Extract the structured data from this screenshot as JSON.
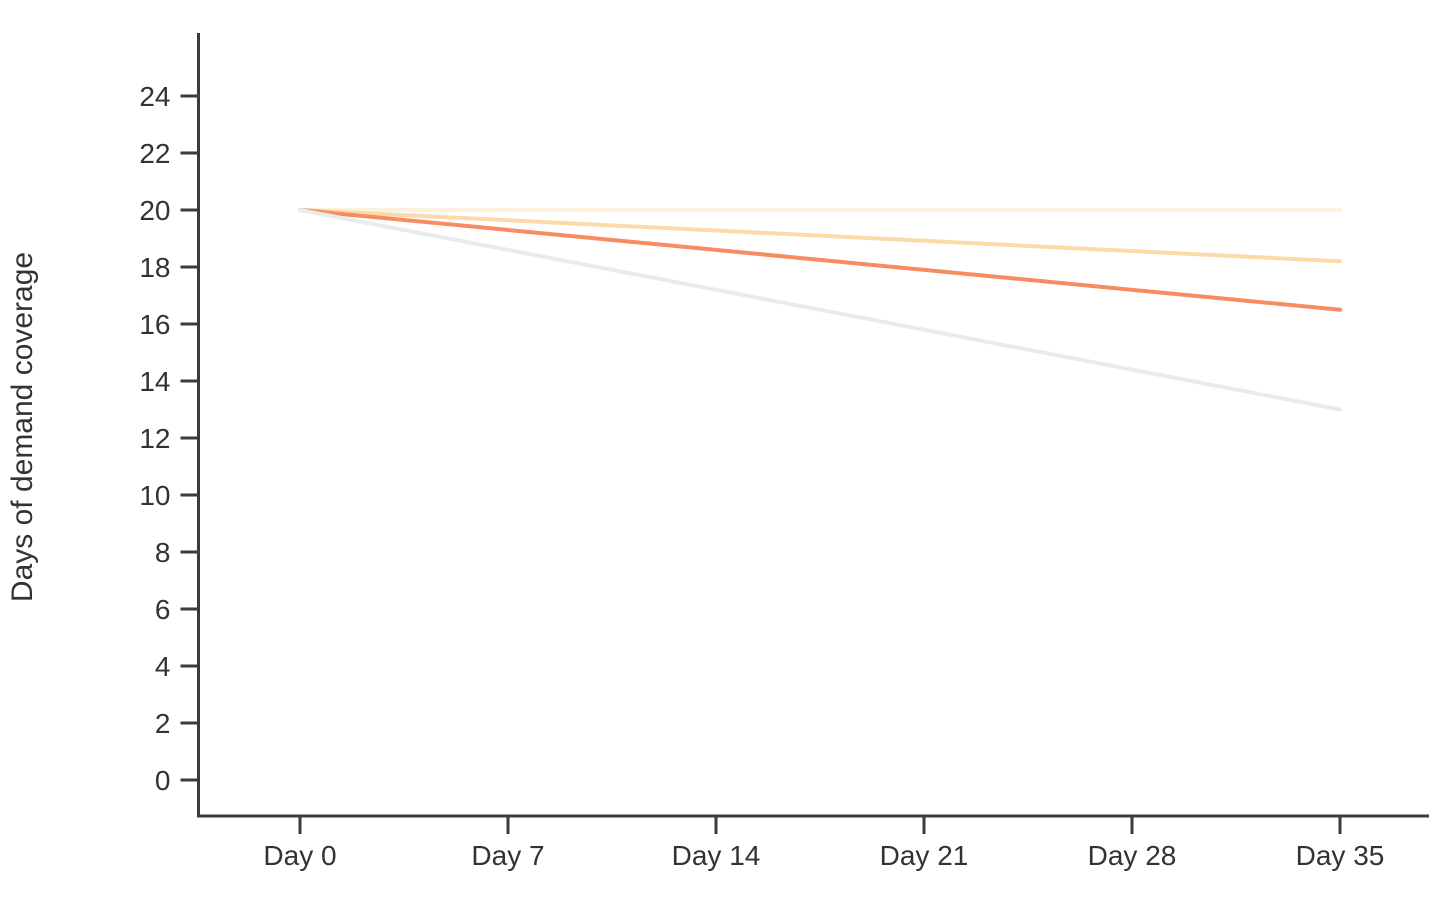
{
  "chart_data": {
    "type": "line",
    "title": "",
    "xlabel": "",
    "ylabel": "Days of demand coverage",
    "x_unit": "days",
    "x_tick_days": [
      0,
      7,
      14,
      21,
      28,
      35
    ],
    "x_tick_labels": [
      "Day 0",
      "Day 7",
      "Day 14",
      "Day 21",
      "Day 28",
      "Day 35"
    ],
    "y_ticks": [
      0,
      2,
      4,
      6,
      8,
      10,
      12,
      14,
      16,
      18,
      20,
      22,
      24
    ],
    "xlim_days": [
      0,
      35
    ],
    "ylim": [
      0,
      26
    ],
    "grid": false,
    "legend_position": "none",
    "series": [
      {
        "name": "series-1",
        "color": "#FCF1DC",
        "x": [
          0,
          35
        ],
        "values": [
          20,
          20
        ]
      },
      {
        "name": "series-2",
        "color": "#FBD9A8",
        "x": [
          0,
          35
        ],
        "values": [
          20,
          18.2
        ]
      },
      {
        "name": "series-3",
        "color": "#F78B61",
        "x": [
          0,
          35
        ],
        "values": [
          20,
          16.5
        ]
      },
      {
        "name": "series-4",
        "color": "#E9ECEF",
        "x": [
          0,
          35
        ],
        "values": [
          20,
          13
        ]
      }
    ],
    "colors": {
      "axis": "#3B3B3B",
      "text": "#333333",
      "background": "#FFFFFF"
    }
  }
}
